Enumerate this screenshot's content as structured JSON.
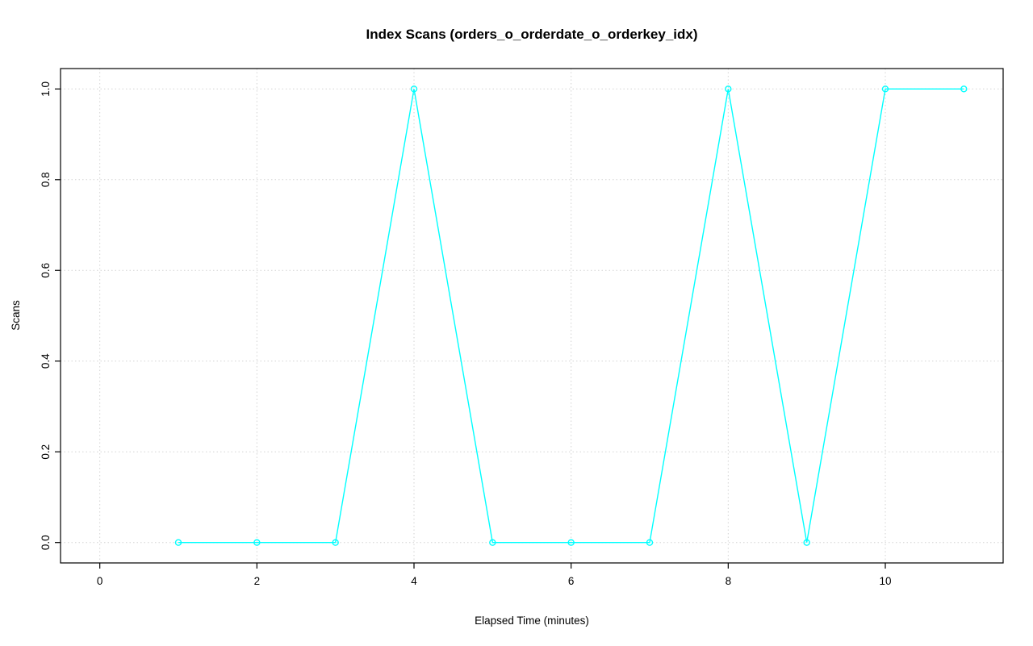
{
  "chart_data": {
    "type": "line",
    "title": "Index Scans (orders_o_orderdate_o_orderkey_idx)",
    "xlabel": "Elapsed Time (minutes)",
    "ylabel": "Scans",
    "x": [
      1,
      2,
      3,
      4,
      5,
      6,
      7,
      8,
      9,
      10,
      11
    ],
    "y": [
      0,
      0,
      0,
      1,
      0,
      0,
      0,
      1,
      0,
      1,
      1
    ],
    "xlim": [
      -0.5,
      11.5
    ],
    "ylim": [
      -0.045,
      1.045
    ],
    "x_ticks": [
      0,
      2,
      4,
      6,
      8,
      10
    ],
    "x_tick_labels": [
      "0",
      "2",
      "4",
      "6",
      "8",
      "10"
    ],
    "y_ticks": [
      0.0,
      0.2,
      0.4,
      0.6,
      0.8,
      1.0
    ],
    "y_tick_labels": [
      "0.0",
      "0.2",
      "0.4",
      "0.6",
      "0.8",
      "1.0"
    ],
    "grid": true,
    "legend": "none",
    "marker": "open-circle",
    "colors": {
      "line": "#00FFFF",
      "grid": "#D3D3D3",
      "axis": "#000000",
      "background": "#FFFFFF"
    }
  }
}
